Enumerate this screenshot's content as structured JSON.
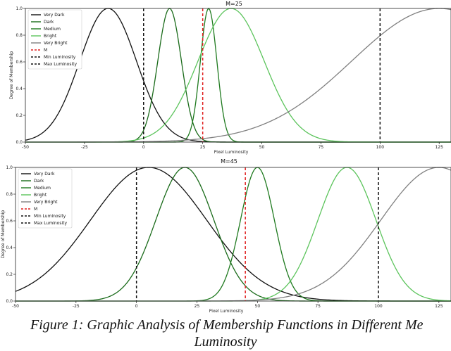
{
  "chart_data": [
    {
      "type": "line",
      "title": "M=25",
      "xlabel": "Pixel Luminosity",
      "ylabel": "Degree of Membership",
      "xlim": [
        -50,
        130
      ],
      "ylim": [
        0,
        1.0
      ],
      "xticks": [
        -50,
        -25,
        0,
        25,
        50,
        75,
        100,
        125
      ],
      "yticks": [
        0.0,
        0.2,
        0.4,
        0.6,
        0.8,
        1.0
      ],
      "grid": false,
      "legend_position": "top-left",
      "series": [
        {
          "name": "Very Dark",
          "color": "#111111",
          "dash": "solid",
          "gaussian": {
            "center": -15,
            "sigma": 12
          }
        },
        {
          "name": "Dark",
          "color": "#1a6b1a",
          "dash": "solid",
          "gaussian": {
            "center": 11,
            "sigma": 5
          }
        },
        {
          "name": "Medium",
          "color": "#1f7a1f",
          "dash": "solid",
          "gaussian": {
            "center": 27.5,
            "sigma": 3.5
          }
        },
        {
          "name": "Bright",
          "color": "#5cc45c",
          "dash": "solid",
          "gaussian": {
            "center": 37,
            "sigma": 14
          }
        },
        {
          "name": "Very Bright",
          "color": "#808080",
          "dash": "solid",
          "gaussian": {
            "center": 125,
            "sigma": 37
          }
        },
        {
          "name": "M",
          "color": "#e02020",
          "dash": "dashed",
          "vline": 25
        },
        {
          "name": "Min Luminosity",
          "color": "#111111",
          "dash": "dashed",
          "vline": 0
        },
        {
          "name": "Max Luminosity",
          "color": "#111111",
          "dash": "dashed",
          "vline": 100
        }
      ]
    },
    {
      "type": "line",
      "title": "M=45",
      "xlabel": "Pixel Luminosity",
      "ylabel": "Degree of Membership",
      "xlim": [
        -50,
        130
      ],
      "ylim": [
        0,
        1.0
      ],
      "xticks": [
        -50,
        -25,
        0,
        25,
        50,
        75,
        100,
        125
      ],
      "yticks": [
        0.0,
        0.2,
        0.4,
        0.6,
        0.8,
        1.0
      ],
      "grid": false,
      "legend_position": "top-left",
      "series": [
        {
          "name": "Very Dark",
          "color": "#111111",
          "dash": "solid",
          "gaussian": {
            "center": 5,
            "sigma": 24
          }
        },
        {
          "name": "Dark",
          "color": "#1a6b1a",
          "dash": "solid",
          "gaussian": {
            "center": 20,
            "sigma": 12
          }
        },
        {
          "name": "Medium",
          "color": "#1f7a1f",
          "dash": "solid",
          "gaussian": {
            "center": 50,
            "sigma": 7
          }
        },
        {
          "name": "Bright",
          "color": "#5cc45c",
          "dash": "solid",
          "gaussian": {
            "center": 87,
            "sigma": 12
          }
        },
        {
          "name": "Very Bright",
          "color": "#808080",
          "dash": "solid",
          "gaussian": {
            "center": 125,
            "sigma": 24
          }
        },
        {
          "name": "M",
          "color": "#e02020",
          "dash": "dashed",
          "vline": 45
        },
        {
          "name": "Min Luminosity",
          "color": "#111111",
          "dash": "dashed",
          "vline": 0
        },
        {
          "name": "Max Luminosity",
          "color": "#111111",
          "dash": "dashed",
          "vline": 100
        }
      ]
    }
  ],
  "caption": {
    "line1": "Figure 1: Graphic Analysis of Membership Functions in Different Me",
    "line2": "Luminosity"
  }
}
